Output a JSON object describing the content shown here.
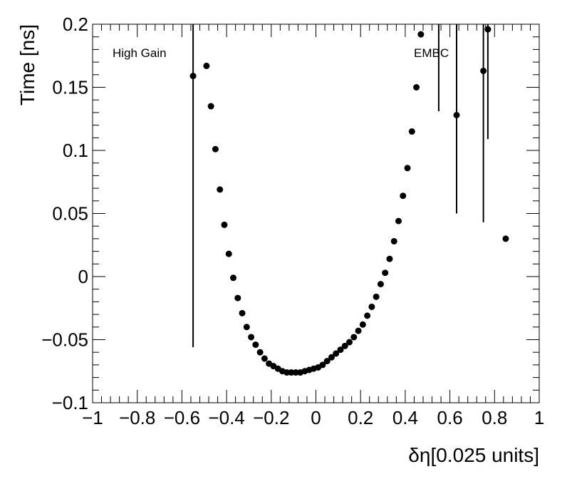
{
  "chart_data": {
    "type": "scatter",
    "title": "",
    "xlabel": "δη[0.025 units]",
    "ylabel": "Time [ns]",
    "xlim": [
      -1,
      1
    ],
    "ylim": [
      -0.1,
      0.2
    ],
    "xticks": [
      -1,
      -0.8,
      -0.6,
      -0.4,
      -0.2,
      0,
      0.2,
      0.4,
      0.6,
      0.8,
      1
    ],
    "xtick_labels": [
      "−1",
      "−0.8",
      "−0.6",
      "−0.4",
      "−0.2",
      "0",
      "0.2",
      "0.4",
      "0.6",
      "0.8",
      "1"
    ],
    "yticks": [
      -0.1,
      -0.05,
      0,
      0.05,
      0.1,
      0.15,
      0.2
    ],
    "ytick_labels": [
      "−0.1",
      "−0.05",
      "0",
      "0.05",
      "0.1",
      "0.15",
      "0.2"
    ],
    "grid": false,
    "annotations": [
      "High Gain",
      "EMBC"
    ],
    "marker_color": "#000000",
    "points": [
      {
        "x": -0.55,
        "y": 0.159,
        "yerr_low": 0.215,
        "yerr_high": 0.045
      },
      {
        "x": -0.49,
        "y": 0.167
      },
      {
        "x": -0.47,
        "y": 0.135
      },
      {
        "x": -0.45,
        "y": 0.101
      },
      {
        "x": -0.43,
        "y": 0.069
      },
      {
        "x": -0.41,
        "y": 0.041
      },
      {
        "x": -0.39,
        "y": 0.018
      },
      {
        "x": -0.37,
        "y": -0.001
      },
      {
        "x": -0.35,
        "y": -0.017
      },
      {
        "x": -0.33,
        "y": -0.029
      },
      {
        "x": -0.31,
        "y": -0.04
      },
      {
        "x": -0.29,
        "y": -0.048
      },
      {
        "x": -0.27,
        "y": -0.054
      },
      {
        "x": -0.25,
        "y": -0.06
      },
      {
        "x": -0.23,
        "y": -0.065
      },
      {
        "x": -0.21,
        "y": -0.069
      },
      {
        "x": -0.19,
        "y": -0.071
      },
      {
        "x": -0.17,
        "y": -0.073
      },
      {
        "x": -0.15,
        "y": -0.075
      },
      {
        "x": -0.13,
        "y": -0.076
      },
      {
        "x": -0.11,
        "y": -0.076
      },
      {
        "x": -0.09,
        "y": -0.076
      },
      {
        "x": -0.07,
        "y": -0.076
      },
      {
        "x": -0.05,
        "y": -0.075
      },
      {
        "x": -0.03,
        "y": -0.074
      },
      {
        "x": -0.01,
        "y": -0.073
      },
      {
        "x": 0.01,
        "y": -0.072
      },
      {
        "x": 0.03,
        "y": -0.07
      },
      {
        "x": 0.05,
        "y": -0.067
      },
      {
        "x": 0.07,
        "y": -0.064
      },
      {
        "x": 0.09,
        "y": -0.061
      },
      {
        "x": 0.11,
        "y": -0.058
      },
      {
        "x": 0.13,
        "y": -0.055
      },
      {
        "x": 0.15,
        "y": -0.052
      },
      {
        "x": 0.17,
        "y": -0.048
      },
      {
        "x": 0.19,
        "y": -0.043
      },
      {
        "x": 0.21,
        "y": -0.038
      },
      {
        "x": 0.23,
        "y": -0.031
      },
      {
        "x": 0.25,
        "y": -0.024
      },
      {
        "x": 0.27,
        "y": -0.016
      },
      {
        "x": 0.29,
        "y": -0.006
      },
      {
        "x": 0.31,
        "y": 0.003
      },
      {
        "x": 0.33,
        "y": 0.014
      },
      {
        "x": 0.35,
        "y": 0.028
      },
      {
        "x": 0.37,
        "y": 0.044
      },
      {
        "x": 0.39,
        "y": 0.064
      },
      {
        "x": 0.41,
        "y": 0.086
      },
      {
        "x": 0.43,
        "y": 0.115
      },
      {
        "x": 0.45,
        "y": 0.15
      },
      {
        "x": 0.47,
        "y": 0.192
      },
      {
        "x": 0.55,
        "y": 0.215,
        "yerr_low": 0.084,
        "yerr_high": 0.02
      },
      {
        "x": 0.63,
        "y": 0.128,
        "yerr_low": 0.078,
        "yerr_high": 0.072
      },
      {
        "x": 0.75,
        "y": 0.163,
        "yerr_low": 0.12,
        "yerr_high": 0.04
      },
      {
        "x": 0.77,
        "y": 0.196,
        "yerr_low": 0.087,
        "yerr_high": 0.004
      },
      {
        "x": 0.85,
        "y": 0.03
      }
    ]
  }
}
